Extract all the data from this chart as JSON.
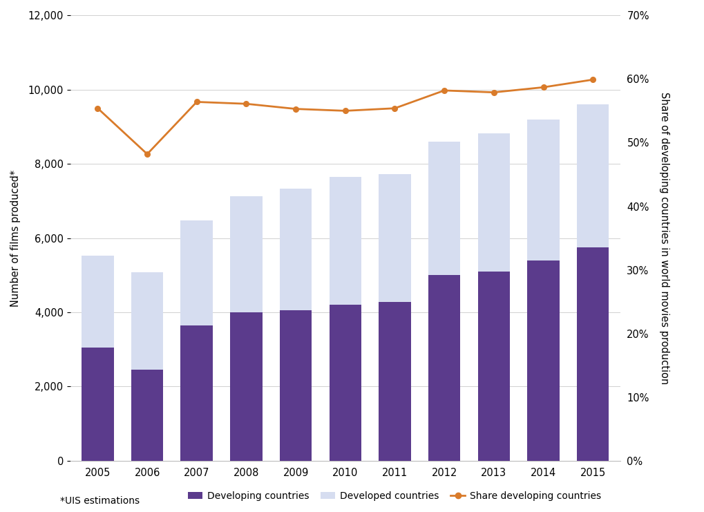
{
  "years": [
    2005,
    2006,
    2007,
    2008,
    2009,
    2010,
    2011,
    2012,
    2013,
    2014,
    2015
  ],
  "developing": [
    3050,
    2450,
    3650,
    4000,
    4050,
    4200,
    4280,
    5000,
    5100,
    5400,
    5750
  ],
  "total": [
    5520,
    5080,
    6480,
    7130,
    7330,
    7650,
    7730,
    8600,
    8820,
    9200,
    9600
  ],
  "share": [
    0.554,
    0.482,
    0.564,
    0.561,
    0.553,
    0.55,
    0.554,
    0.582,
    0.579,
    0.587,
    0.599
  ],
  "bar_developing_color": "#5b3b8c",
  "bar_developed_color": "#d6ddf0",
  "line_color": "#d97b2a",
  "ylim_left": [
    0,
    12000
  ],
  "ylim_right": [
    0,
    0.7
  ],
  "yticks_left": [
    0,
    2000,
    4000,
    6000,
    8000,
    10000,
    12000
  ],
  "yticks_right": [
    0.0,
    0.1,
    0.2,
    0.3,
    0.4,
    0.5,
    0.6,
    0.7
  ],
  "ylabel_left": "Number of films produced*",
  "ylabel_right": "Share of developing countries in world movies production",
  "legend_labels": [
    "Developing countries",
    "Developed countries",
    "Share developing countries"
  ],
  "footnote": "*UIS estimations",
  "background_color": "#ffffff",
  "grid_color": "#d0d0d0"
}
